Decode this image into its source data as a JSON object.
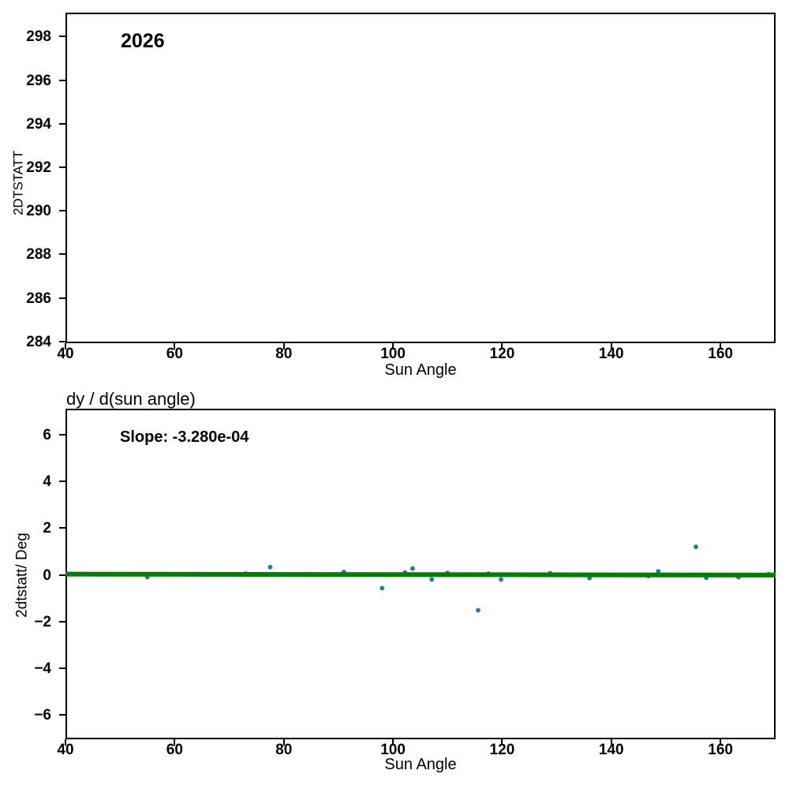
{
  "figure": {
    "background": "#ffffff"
  },
  "chart_data": [
    {
      "type": "scatter",
      "title": "",
      "annotation": "2026",
      "xlabel": "Sun Angle",
      "ylabel": "2DTSTATT",
      "xlim": [
        40,
        170.1
      ],
      "ylim": [
        283.92,
        299.1
      ],
      "x_ticks": [
        40,
        60,
        80,
        100,
        120,
        140,
        160
      ],
      "y_ticks": [
        284,
        286,
        288,
        290,
        292,
        294,
        296,
        298
      ],
      "points": [],
      "point_color": "#1f77b4",
      "grid": false,
      "legend": null
    },
    {
      "type": "scatter",
      "title": "dy / d(sun angle)",
      "annotation": "Slope: -3.280e-04",
      "xlabel": "Sun Angle",
      "ylabel": "2dtstatt/ Deg",
      "xlim": [
        40,
        170.1
      ],
      "ylim": [
        -7.05,
        7.12
      ],
      "x_ticks": [
        40,
        60,
        80,
        100,
        120,
        140,
        160
      ],
      "y_ticks": [
        -6,
        -4,
        -2,
        0,
        2,
        4,
        6
      ],
      "points": [
        [
          55,
          -0.1
        ],
        [
          73,
          0.05
        ],
        [
          77.5,
          0.33
        ],
        [
          84.3,
          0.0
        ],
        [
          91,
          0.12
        ],
        [
          98,
          -0.57
        ],
        [
          102.2,
          0.1
        ],
        [
          103.6,
          0.27
        ],
        [
          107.1,
          -0.2
        ],
        [
          110,
          0.08
        ],
        [
          115.6,
          -1.52
        ],
        [
          117.5,
          0.05
        ],
        [
          119.8,
          -0.2
        ],
        [
          128.8,
          0.07
        ],
        [
          136,
          -0.14
        ],
        [
          146.8,
          -0.05
        ],
        [
          148.6,
          0.15
        ],
        [
          155.5,
          1.2
        ],
        [
          157.4,
          -0.13
        ],
        [
          163.3,
          -0.1
        ],
        [
          168.8,
          0.03
        ]
      ],
      "point_color": "#1f77b4",
      "fit_line": {
        "slope_label": "-3.280e-04",
        "color": "#008000",
        "y_at_xmin": 0.03,
        "y_at_xmax": -0.013
      },
      "grid": false,
      "legend": null
    }
  ]
}
